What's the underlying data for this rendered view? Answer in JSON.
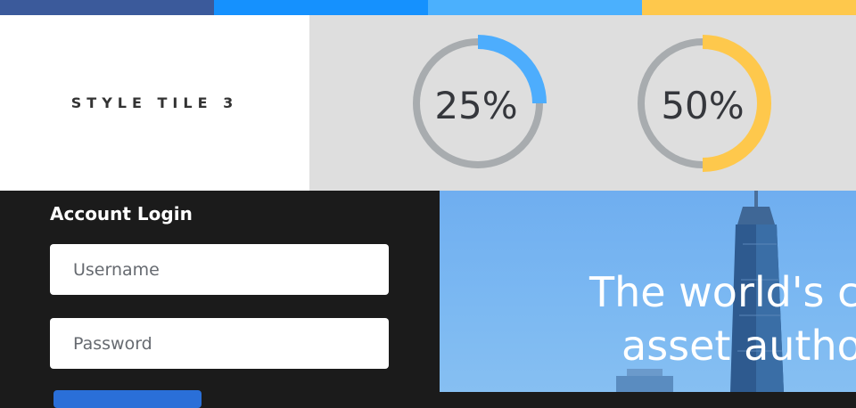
{
  "palette": {
    "swatches": [
      "#3b5a9b",
      "#1591fe",
      "#4bb0fd",
      "#fec84c"
    ],
    "gauge_track": "#a8acaf",
    "gauge_blue": "#4dadfd",
    "gauge_yellow": "#fec84c",
    "login_button": "#2a6fd8"
  },
  "style_tile": {
    "title": "STYLE TILE 3"
  },
  "gauges": [
    {
      "label": "25%",
      "value": 0.25,
      "color": "#4dadfd"
    },
    {
      "label": "50%",
      "value": 0.5,
      "color": "#fec84c"
    }
  ],
  "login": {
    "title": "Account Login",
    "username_placeholder": "Username",
    "password_placeholder": "Password"
  },
  "hero": {
    "line1": "The world's ca",
    "line2": "asset author"
  }
}
